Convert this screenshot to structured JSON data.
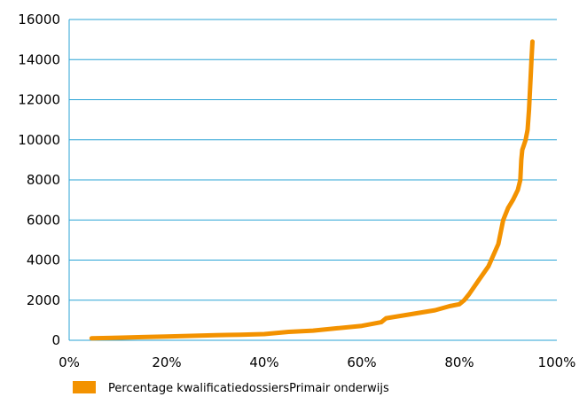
{
  "chart_data": {
    "type": "line",
    "title": "",
    "xlabel": "",
    "ylabel": "",
    "xlim": [
      0,
      100
    ],
    "ylim": [
      0,
      16000
    ],
    "x_ticks": [
      0,
      20,
      40,
      60,
      80,
      100
    ],
    "x_tick_labels": [
      "0%",
      "20%",
      "40%",
      "60%",
      "80%",
      "100%"
    ],
    "y_ticks": [
      0,
      2000,
      4000,
      6000,
      8000,
      10000,
      12000,
      14000,
      16000
    ],
    "y_tick_labels": [
      "0",
      "2000",
      "4000",
      "6000",
      "8000",
      "10000",
      "12000",
      "14000",
      "16000"
    ],
    "grid": "horizontal",
    "legend_position": "bottom-left",
    "series": [
      {
        "name": "Percentage kwalificatiedossiersPrimair onderwijs",
        "color": "#f39200",
        "x": [
          4.6,
          10,
          15,
          20,
          25,
          30,
          35,
          40,
          45,
          50,
          55,
          60,
          64,
          65,
          70,
          75,
          78,
          80,
          81,
          82,
          84,
          86,
          88,
          89,
          90,
          91,
          92,
          92.5,
          92.7,
          92.9,
          93.2,
          93.6,
          94,
          94.3,
          94.6,
          94.8,
          95.0
        ],
        "y": [
          100,
          130,
          160,
          190,
          220,
          250,
          280,
          310,
          420,
          480,
          600,
          720,
          900,
          1100,
          1300,
          1500,
          1700,
          1800,
          2000,
          2300,
          3000,
          3700,
          4800,
          6000,
          6600,
          7000,
          7500,
          8000,
          9000,
          9500,
          9700,
          10000,
          10500,
          11500,
          13000,
          14000,
          14900
        ]
      }
    ]
  }
}
